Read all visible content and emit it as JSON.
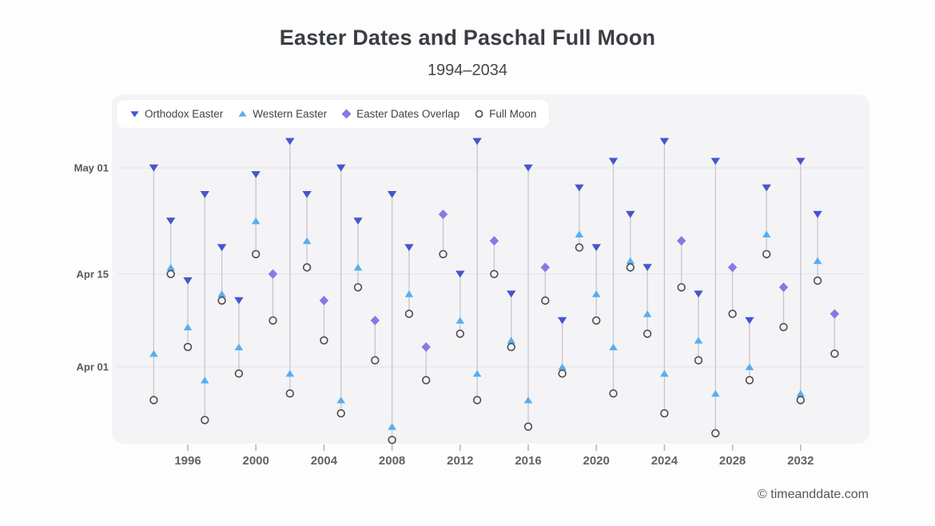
{
  "header": {
    "title": "Easter Dates and Paschal Full Moon",
    "subtitle": "1994–2034"
  },
  "footer": {
    "copyright": "© timeanddate.com"
  },
  "chart_data": {
    "type": "scatter",
    "title": "Easter Dates and Paschal Full Moon",
    "subtitle": "1994–2034",
    "x_range": [
      1994,
      2034
    ],
    "x_ticks": [
      1996,
      2000,
      2004,
      2008,
      2012,
      2016,
      2020,
      2024,
      2028,
      2032
    ],
    "y_ticks": [
      "May 01",
      "Apr 15",
      "Apr 01"
    ],
    "grid": "horizontal-only",
    "legend_position": "top-left",
    "series": [
      {
        "name": "Orthodox Easter",
        "marker": "triangle-down",
        "color": "#4656cd"
      },
      {
        "name": "Western Easter",
        "marker": "triangle-up",
        "color": "#58aeef"
      },
      {
        "name": "Easter Dates Overlap",
        "marker": "diamond",
        "color": "#8779e3"
      },
      {
        "name": "Full Moon",
        "marker": "circle-open",
        "color": "#4c4c4e"
      }
    ],
    "colors": {
      "panel_bg": "#f4f4f7",
      "page_bg": "#fdfdfe",
      "gridline": "#e3e3e8",
      "connector": "#c7c7cc",
      "tick": "#b4b4b9"
    },
    "points": [
      {
        "year": 1994,
        "overlap": false,
        "orthodox": "May 1",
        "western": "Apr 3",
        "full_moon": "Mar 27"
      },
      {
        "year": 1995,
        "overlap": false,
        "orthodox": "Apr 23",
        "western": "Apr 16",
        "full_moon": "Apr 15"
      },
      {
        "year": 1996,
        "overlap": false,
        "orthodox": "Apr 14",
        "western": "Apr 7",
        "full_moon": "Apr 4"
      },
      {
        "year": 1997,
        "overlap": false,
        "orthodox": "Apr 27",
        "western": "Mar 30",
        "full_moon": "Mar 24"
      },
      {
        "year": 1998,
        "overlap": false,
        "orthodox": "Apr 19",
        "western": "Apr 12",
        "full_moon": "Apr 11"
      },
      {
        "year": 1999,
        "overlap": false,
        "orthodox": "Apr 11",
        "western": "Apr 4",
        "full_moon": "Mar 31"
      },
      {
        "year": 2000,
        "overlap": false,
        "orthodox": "Apr 30",
        "western": "Apr 23",
        "full_moon": "Apr 18"
      },
      {
        "year": 2001,
        "overlap": true,
        "easter": "Apr 15",
        "full_moon": "Apr 8"
      },
      {
        "year": 2002,
        "overlap": false,
        "orthodox": "May 5",
        "western": "Mar 31",
        "full_moon": "Mar 28"
      },
      {
        "year": 2003,
        "overlap": false,
        "orthodox": "Apr 27",
        "western": "Apr 20",
        "full_moon": "Apr 16"
      },
      {
        "year": 2004,
        "overlap": true,
        "easter": "Apr 11",
        "full_moon": "Apr 5"
      },
      {
        "year": 2005,
        "overlap": false,
        "orthodox": "May 1",
        "western": "Mar 27",
        "full_moon": "Mar 25"
      },
      {
        "year": 2006,
        "overlap": false,
        "orthodox": "Apr 23",
        "western": "Apr 16",
        "full_moon": "Apr 13"
      },
      {
        "year": 2007,
        "overlap": true,
        "easter": "Apr 8",
        "full_moon": "Apr 2"
      },
      {
        "year": 2008,
        "overlap": false,
        "orthodox": "Apr 27",
        "western": "Mar 23",
        "full_moon": "Mar 21"
      },
      {
        "year": 2009,
        "overlap": false,
        "orthodox": "Apr 19",
        "western": "Apr 12",
        "full_moon": "Apr 9"
      },
      {
        "year": 2010,
        "overlap": true,
        "easter": "Apr 4",
        "full_moon": "Mar 30"
      },
      {
        "year": 2011,
        "overlap": true,
        "easter": "Apr 24",
        "full_moon": "Apr 18"
      },
      {
        "year": 2012,
        "overlap": false,
        "orthodox": "Apr 15",
        "western": "Apr 8",
        "full_moon": "Apr 6"
      },
      {
        "year": 2013,
        "overlap": false,
        "orthodox": "May 5",
        "western": "Mar 31",
        "full_moon": "Mar 27"
      },
      {
        "year": 2014,
        "overlap": true,
        "easter": "Apr 20",
        "full_moon": "Apr 15"
      },
      {
        "year": 2015,
        "overlap": false,
        "orthodox": "Apr 12",
        "western": "Apr 5",
        "full_moon": "Apr 4"
      },
      {
        "year": 2016,
        "overlap": false,
        "orthodox": "May 1",
        "western": "Mar 27",
        "full_moon": "Mar 23"
      },
      {
        "year": 2017,
        "overlap": true,
        "easter": "Apr 16",
        "full_moon": "Apr 11"
      },
      {
        "year": 2018,
        "overlap": false,
        "orthodox": "Apr 8",
        "western": "Apr 1",
        "full_moon": "Mar 31"
      },
      {
        "year": 2019,
        "overlap": false,
        "orthodox": "Apr 28",
        "western": "Apr 21",
        "full_moon": "Apr 19"
      },
      {
        "year": 2020,
        "overlap": false,
        "orthodox": "Apr 19",
        "western": "Apr 12",
        "full_moon": "Apr 8"
      },
      {
        "year": 2021,
        "overlap": false,
        "orthodox": "May 2",
        "western": "Apr 4",
        "full_moon": "Mar 28"
      },
      {
        "year": 2022,
        "overlap": false,
        "orthodox": "Apr 24",
        "western": "Apr 17",
        "full_moon": "Apr 16"
      },
      {
        "year": 2023,
        "overlap": false,
        "orthodox": "Apr 16",
        "western": "Apr 9",
        "full_moon": "Apr 6"
      },
      {
        "year": 2024,
        "overlap": false,
        "orthodox": "May 5",
        "western": "Mar 31",
        "full_moon": "Mar 25"
      },
      {
        "year": 2025,
        "overlap": true,
        "easter": "Apr 20",
        "full_moon": "Apr 13"
      },
      {
        "year": 2026,
        "overlap": false,
        "orthodox": "Apr 12",
        "western": "Apr 5",
        "full_moon": "Apr 2"
      },
      {
        "year": 2027,
        "overlap": false,
        "orthodox": "May 2",
        "western": "Mar 28",
        "full_moon": "Mar 22"
      },
      {
        "year": 2028,
        "overlap": true,
        "easter": "Apr 16",
        "full_moon": "Apr 9"
      },
      {
        "year": 2029,
        "overlap": false,
        "orthodox": "Apr 8",
        "western": "Apr 1",
        "full_moon": "Mar 30"
      },
      {
        "year": 2030,
        "overlap": false,
        "orthodox": "Apr 28",
        "western": "Apr 21",
        "full_moon": "Apr 18"
      },
      {
        "year": 2031,
        "overlap": true,
        "easter": "Apr 13",
        "full_moon": "Apr 7"
      },
      {
        "year": 2032,
        "overlap": false,
        "orthodox": "May 2",
        "western": "Mar 28",
        "full_moon": "Mar 27"
      },
      {
        "year": 2033,
        "overlap": false,
        "orthodox": "Apr 24",
        "western": "Apr 17",
        "full_moon": "Apr 14"
      },
      {
        "year": 2034,
        "overlap": true,
        "easter": "Apr 9",
        "full_moon": "Apr 3"
      }
    ]
  }
}
